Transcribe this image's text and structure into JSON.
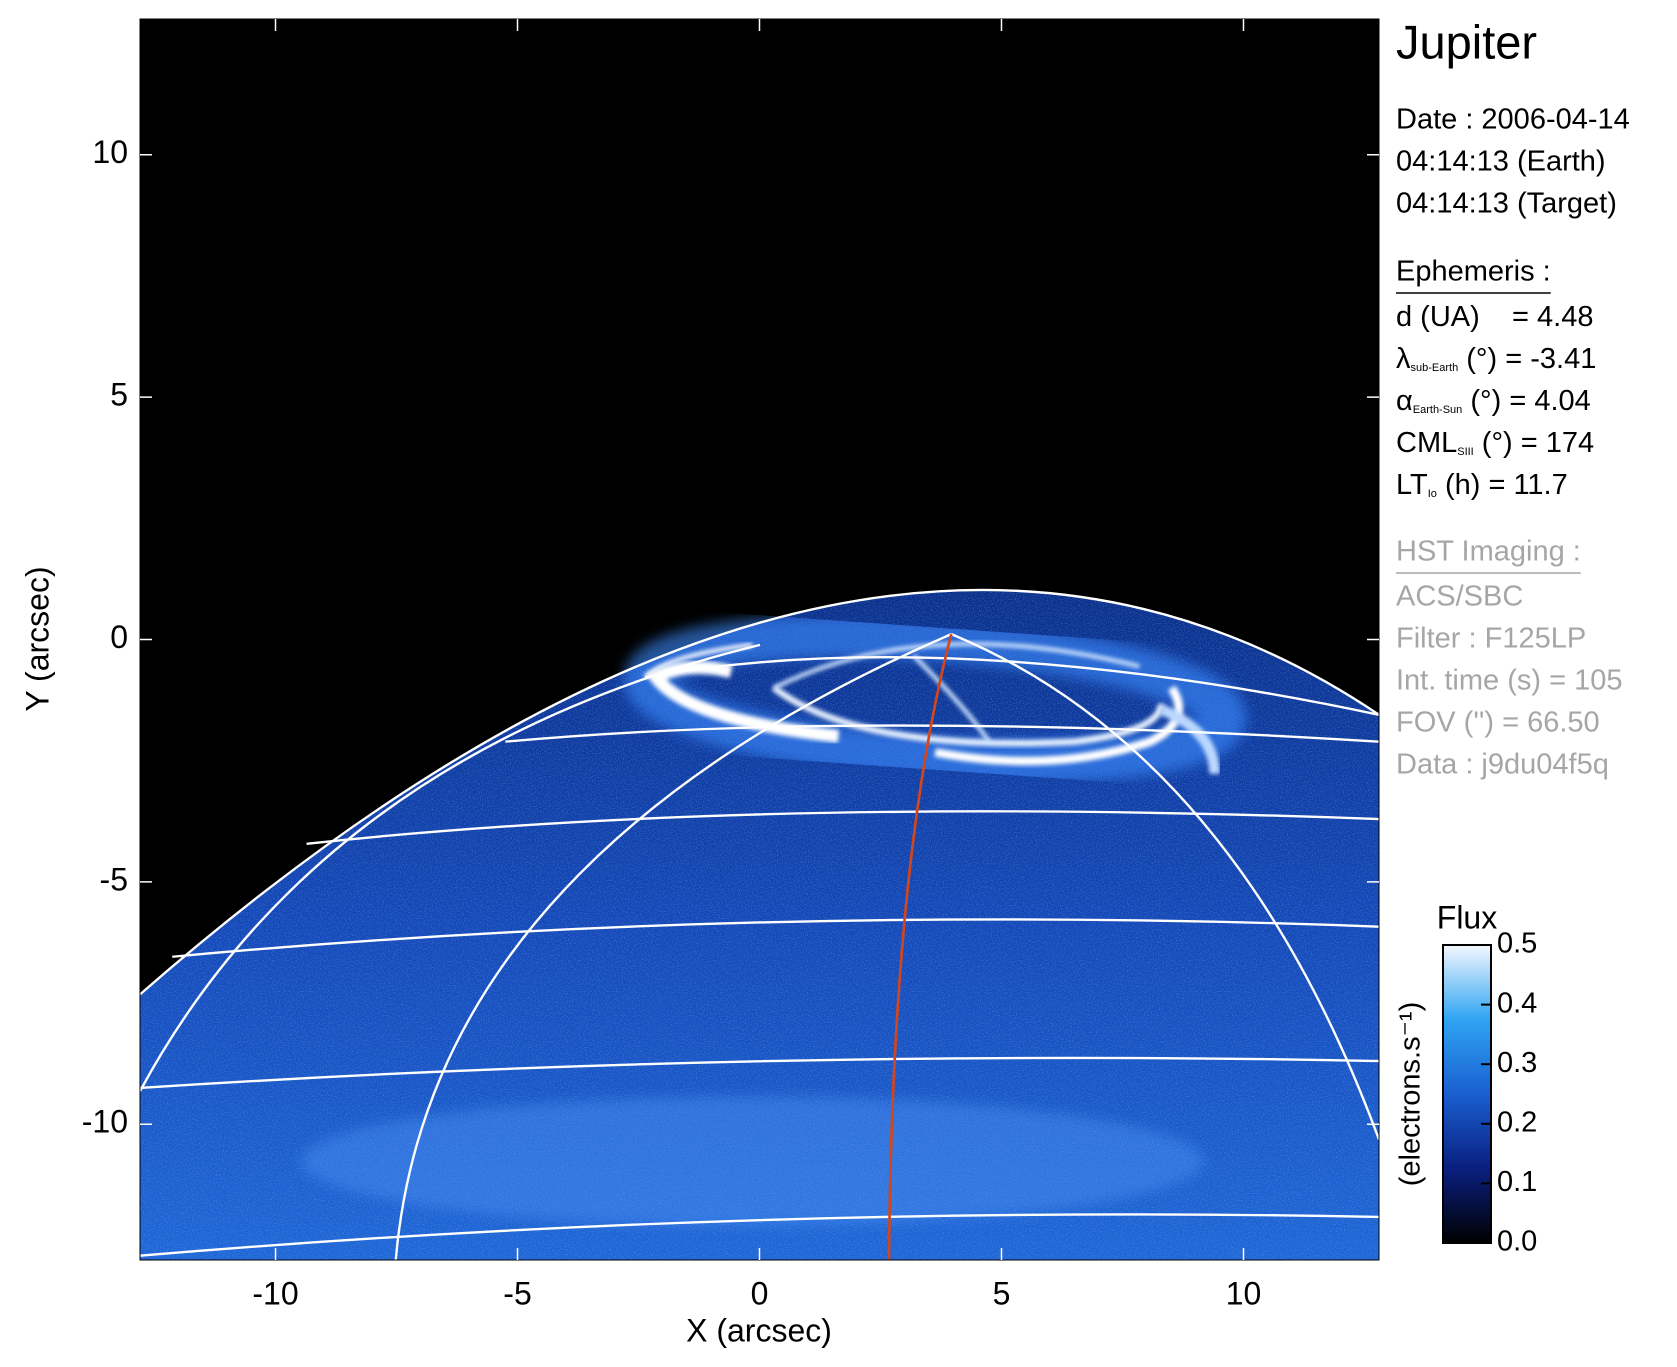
{
  "chart_data": {
    "type": "image",
    "xlabel": "X (arcsec)",
    "ylabel": "Y (arcsec)",
    "xlim": [
      -12.8,
      12.8
    ],
    "ylim": [
      -12.8,
      12.8
    ],
    "xticks": [
      -10,
      -5,
      0,
      5,
      10
    ],
    "yticks": [
      -10,
      -5,
      0,
      5,
      10
    ],
    "colorbar": {
      "title": "Flux",
      "label": "(electrons.s⁻¹)",
      "lim": [
        0,
        0.5
      ],
      "ticks": [
        {
          "value": 0,
          "label": "0.0"
        },
        0.1,
        0.2,
        0.3,
        0.4,
        0.5
      ]
    }
  },
  "info": {
    "title": "Jupiter",
    "date": [
      "Date : 2006-04-14",
      "04:14:13 (Earth)",
      "04:14:13 (Target)"
    ],
    "ephemeris": {
      "heading": "Ephemeris :",
      "lines": [
        {
          "main": "d (UA)    = 4.48"
        },
        {
          "main": "λ",
          "sub": "sub-Earth",
          "rest": " (°) = -3.41"
        },
        {
          "main": "α",
          "sub": "Earth-Sun",
          "rest": " (°) = 4.04"
        },
        {
          "main": "CML",
          "sub": "SIII",
          "rest": " (°) = 174"
        },
        {
          "main": "LT",
          "sub": "Io",
          "rest": " (h) = 11.7"
        }
      ]
    },
    "imaging": {
      "heading": "HST Imaging :",
      "lines": [
        "ACS/SBC",
        "Filter : F125LP",
        "Int. time (s) = 105",
        "FOV ('') = 66.50",
        "Data : j9du04f5q"
      ]
    }
  }
}
